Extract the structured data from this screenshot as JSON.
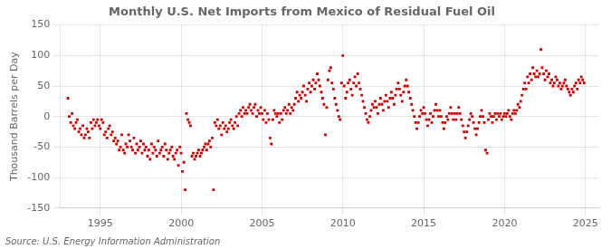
{
  "chart_data": {
    "type": "scatter",
    "title": "Monthly U.S. Net Imports from Mexico of Residual Fuel Oil",
    "ylabel": "Thousand Barrels per Day",
    "annotations": [
      "Source: U.S. Energy Information Administration"
    ],
    "xlim": [
      1992.5,
      2025.8
    ],
    "ylim": [
      -150,
      150
    ],
    "xticks": [
      1995,
      2000,
      2005,
      2010,
      2015,
      2020,
      2025
    ],
    "yticks": [
      -150,
      -100,
      -50,
      0,
      50,
      100,
      150
    ],
    "grid": true,
    "color": "#CC0000",
    "marker": "square",
    "x": [
      1993.0,
      1993.08,
      1993.17,
      1993.25,
      1993.33,
      1993.42,
      1993.5,
      1993.58,
      1993.67,
      1993.75,
      1993.83,
      1993.92,
      1994.0,
      1994.08,
      1994.17,
      1994.25,
      1994.33,
      1994.42,
      1994.5,
      1994.58,
      1994.67,
      1994.75,
      1994.83,
      1994.92,
      1995.0,
      1995.08,
      1995.17,
      1995.25,
      1995.33,
      1995.42,
      1995.5,
      1995.58,
      1995.67,
      1995.75,
      1995.83,
      1995.92,
      1996.0,
      1996.08,
      1996.17,
      1996.25,
      1996.33,
      1996.42,
      1996.5,
      1996.58,
      1996.67,
      1996.75,
      1996.83,
      1996.92,
      1997.0,
      1997.08,
      1997.17,
      1997.25,
      1997.33,
      1997.42,
      1997.5,
      1997.58,
      1997.67,
      1997.75,
      1997.83,
      1997.92,
      1998.0,
      1998.08,
      1998.17,
      1998.25,
      1998.33,
      1998.42,
      1998.5,
      1998.58,
      1998.67,
      1998.75,
      1998.83,
      1998.92,
      1999.0,
      1999.08,
      1999.17,
      1999.25,
      1999.33,
      1999.42,
      1999.5,
      1999.58,
      1999.67,
      1999.75,
      1999.83,
      1999.92,
      2000.0,
      2000.08,
      2000.17,
      2000.25,
      2000.33,
      2000.42,
      2000.5,
      2000.58,
      2000.67,
      2000.75,
      2000.83,
      2000.92,
      2001.0,
      2001.08,
      2001.17,
      2001.25,
      2001.33,
      2001.42,
      2001.5,
      2001.58,
      2001.67,
      2001.75,
      2001.83,
      2001.92,
      2002.0,
      2002.08,
      2002.17,
      2002.25,
      2002.33,
      2002.42,
      2002.5,
      2002.58,
      2002.67,
      2002.75,
      2002.83,
      2002.92,
      2003.0,
      2003.08,
      2003.17,
      2003.25,
      2003.33,
      2003.42,
      2003.5,
      2003.58,
      2003.67,
      2003.75,
      2003.83,
      2003.92,
      2004.0,
      2004.08,
      2004.17,
      2004.25,
      2004.33,
      2004.42,
      2004.5,
      2004.58,
      2004.67,
      2004.75,
      2004.83,
      2004.92,
      2005.0,
      2005.08,
      2005.17,
      2005.25,
      2005.33,
      2005.42,
      2005.5,
      2005.58,
      2005.67,
      2005.75,
      2005.83,
      2005.92,
      2006.0,
      2006.08,
      2006.17,
      2006.25,
      2006.33,
      2006.42,
      2006.5,
      2006.58,
      2006.67,
      2006.75,
      2006.83,
      2006.92,
      2007.0,
      2007.08,
      2007.17,
      2007.25,
      2007.33,
      2007.42,
      2007.5,
      2007.58,
      2007.67,
      2007.75,
      2007.83,
      2007.92,
      2008.0,
      2008.08,
      2008.17,
      2008.25,
      2008.33,
      2008.42,
      2008.5,
      2008.58,
      2008.67,
      2008.75,
      2008.83,
      2008.92,
      2009.0,
      2009.08,
      2009.17,
      2009.25,
      2009.33,
      2009.42,
      2009.5,
      2009.58,
      2009.67,
      2009.75,
      2009.83,
      2009.92,
      2010.0,
      2010.08,
      2010.17,
      2010.25,
      2010.33,
      2010.42,
      2010.5,
      2010.58,
      2010.67,
      2010.75,
      2010.83,
      2010.92,
      2011.0,
      2011.08,
      2011.17,
      2011.25,
      2011.33,
      2011.42,
      2011.5,
      2011.58,
      2011.67,
      2011.75,
      2011.83,
      2011.92,
      2012.0,
      2012.08,
      2012.17,
      2012.25,
      2012.33,
      2012.42,
      2012.5,
      2012.58,
      2012.67,
      2012.75,
      2012.83,
      2012.92,
      2013.0,
      2013.08,
      2013.17,
      2013.25,
      2013.33,
      2013.42,
      2013.5,
      2013.58,
      2013.67,
      2013.75,
      2013.83,
      2013.92,
      2014.0,
      2014.08,
      2014.17,
      2014.25,
      2014.33,
      2014.42,
      2014.5,
      2014.58,
      2014.67,
      2014.75,
      2014.83,
      2014.92,
      2015.0,
      2015.08,
      2015.17,
      2015.25,
      2015.33,
      2015.42,
      2015.5,
      2015.58,
      2015.67,
      2015.75,
      2015.83,
      2015.92,
      2016.0,
      2016.08,
      2016.17,
      2016.25,
      2016.33,
      2016.42,
      2016.5,
      2016.58,
      2016.67,
      2016.75,
      2016.83,
      2016.92,
      2017.0,
      2017.08,
      2017.17,
      2017.25,
      2017.33,
      2017.42,
      2017.5,
      2017.58,
      2017.67,
      2017.75,
      2017.83,
      2017.92,
      2018.0,
      2018.08,
      2018.17,
      2018.25,
      2018.33,
      2018.42,
      2018.5,
      2018.58,
      2018.67,
      2018.75,
      2018.83,
      2018.92,
      2019.0,
      2019.08,
      2019.17,
      2019.25,
      2019.33,
      2019.42,
      2019.5,
      2019.58,
      2019.67,
      2019.75,
      2019.83,
      2019.92,
      2020.0,
      2020.08,
      2020.17,
      2020.25,
      2020.33,
      2020.42,
      2020.5,
      2020.58,
      2020.67,
      2020.75,
      2020.83,
      2020.92,
      2021.0,
      2021.08,
      2021.17,
      2021.25,
      2021.33,
      2021.42,
      2021.5,
      2021.58,
      2021.67,
      2021.75,
      2021.83,
      2021.92,
      2022.0,
      2022.08,
      2022.17,
      2022.25,
      2022.33,
      2022.42,
      2022.5,
      2022.58,
      2022.67,
      2022.75,
      2022.83,
      2022.92,
      2023.0,
      2023.08,
      2023.17,
      2023.25,
      2023.33,
      2023.42,
      2023.5,
      2023.58,
      2023.67,
      2023.75,
      2023.83,
      2023.92,
      2024.0,
      2024.08,
      2024.17,
      2024.25,
      2024.33,
      2024.42,
      2024.5,
      2024.58,
      2024.67,
      2024.75,
      2024.83,
      2024.92
    ],
    "values": [
      30,
      0,
      -10,
      5,
      -15,
      -20,
      -10,
      -5,
      -25,
      -20,
      -30,
      -15,
      -35,
      -30,
      -20,
      -25,
      -35,
      -10,
      -20,
      -5,
      -15,
      -10,
      -5,
      -15,
      -20,
      -5,
      -10,
      -30,
      -25,
      -35,
      -20,
      -15,
      -30,
      -25,
      -40,
      -35,
      -45,
      -40,
      -55,
      -50,
      -30,
      -55,
      -60,
      -45,
      -50,
      -30,
      -40,
      -50,
      -55,
      -35,
      -60,
      -45,
      -55,
      -50,
      -40,
      -60,
      -45,
      -55,
      -50,
      -65,
      -55,
      -70,
      -45,
      -60,
      -50,
      -55,
      -65,
      -40,
      -60,
      -55,
      -50,
      -65,
      -45,
      -55,
      -70,
      -60,
      -55,
      -50,
      -65,
      -70,
      -60,
      -55,
      -80,
      -50,
      -60,
      -90,
      -75,
      -120,
      5,
      -5,
      -10,
      -15,
      -65,
      -60,
      -70,
      -65,
      -60,
      -55,
      -65,
      -60,
      -55,
      -50,
      -45,
      -55,
      -45,
      -40,
      -50,
      -35,
      -120,
      -10,
      -15,
      -5,
      -20,
      -15,
      -30,
      -10,
      -20,
      -15,
      -25,
      -20,
      -10,
      -5,
      -15,
      -20,
      -10,
      0,
      -15,
      5,
      10,
      0,
      15,
      5,
      10,
      5,
      15,
      20,
      10,
      5,
      15,
      20,
      0,
      10,
      5,
      15,
      5,
      -5,
      10,
      -10,
      5,
      -5,
      -35,
      -45,
      -5,
      10,
      5,
      0,
      5,
      -10,
      5,
      -5,
      10,
      15,
      5,
      10,
      20,
      5,
      15,
      10,
      20,
      30,
      40,
      25,
      35,
      30,
      40,
      50,
      35,
      25,
      45,
      55,
      40,
      50,
      60,
      45,
      55,
      70,
      60,
      50,
      40,
      30,
      20,
      -30,
      15,
      60,
      75,
      80,
      55,
      45,
      30,
      20,
      10,
      0,
      -5,
      55,
      100,
      50,
      30,
      40,
      55,
      60,
      45,
      35,
      55,
      65,
      50,
      70,
      55,
      45,
      35,
      25,
      15,
      5,
      -5,
      -10,
      0,
      10,
      20,
      15,
      25,
      15,
      5,
      20,
      30,
      20,
      10,
      25,
      35,
      25,
      15,
      30,
      40,
      30,
      20,
      35,
      45,
      55,
      45,
      35,
      25,
      40,
      50,
      60,
      50,
      40,
      30,
      20,
      10,
      0,
      -10,
      -20,
      -10,
      0,
      10,
      5,
      15,
      5,
      -5,
      -15,
      -5,
      5,
      -10,
      0,
      10,
      20,
      10,
      0,
      10,
      0,
      -10,
      -20,
      -10,
      0,
      -5,
      5,
      15,
      5,
      -5,
      5,
      -5,
      5,
      15,
      5,
      -5,
      -15,
      -25,
      -35,
      -25,
      -15,
      -5,
      5,
      0,
      -10,
      -20,
      -30,
      -20,
      -10,
      0,
      10,
      0,
      -10,
      -55,
      -60,
      -5,
      5,
      0,
      -10,
      0,
      5,
      -5,
      5,
      0,
      5,
      -5,
      0,
      5,
      0,
      5,
      10,
      0,
      -5,
      5,
      10,
      5,
      10,
      20,
      15,
      25,
      35,
      45,
      55,
      45,
      65,
      55,
      70,
      60,
      80,
      70,
      65,
      75,
      65,
      70,
      110,
      80,
      70,
      60,
      75,
      65,
      70,
      55,
      60,
      50,
      55,
      65,
      60,
      50,
      55,
      45,
      50,
      55,
      60,
      50,
      45,
      40,
      35,
      45,
      40,
      50,
      55,
      45,
      60,
      55,
      65,
      60,
      55
    ]
  }
}
